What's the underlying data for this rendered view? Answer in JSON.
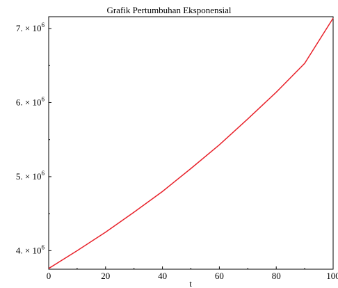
{
  "chart_data": {
    "type": "line",
    "title": "Grafik Pertumbuhan Eksponensial",
    "xlabel": "t",
    "ylabel": "",
    "xlim": [
      0,
      100
    ],
    "ylim": [
      3750000,
      7160000
    ],
    "x_ticks": [
      0,
      20,
      40,
      60,
      80,
      100
    ],
    "x_tick_labels": [
      "0",
      "20",
      "40",
      "60",
      "80",
      "100"
    ],
    "y_ticks": [
      4000000,
      5000000,
      6000000,
      7000000
    ],
    "y_tick_labels": [
      {
        "coef": "4.",
        "times": "×",
        "base": "10",
        "exp": "6"
      },
      {
        "coef": "5.",
        "times": "×",
        "base": "10",
        "exp": "6"
      },
      {
        "coef": "6.",
        "times": "×",
        "base": "10",
        "exp": "6"
      },
      {
        "coef": "7.",
        "times": "×",
        "base": "10",
        "exp": "6"
      }
    ],
    "grid": false,
    "legend": "none",
    "series": [
      {
        "color": "#e8212a",
        "x": [
          0,
          10,
          20,
          30,
          40,
          50,
          60,
          70,
          80,
          90,
          100
        ],
        "y": [
          3760000,
          4000000,
          4250000,
          4520000,
          4800000,
          5110000,
          5430000,
          5780000,
          6140000,
          6530000,
          7140000
        ]
      }
    ]
  }
}
